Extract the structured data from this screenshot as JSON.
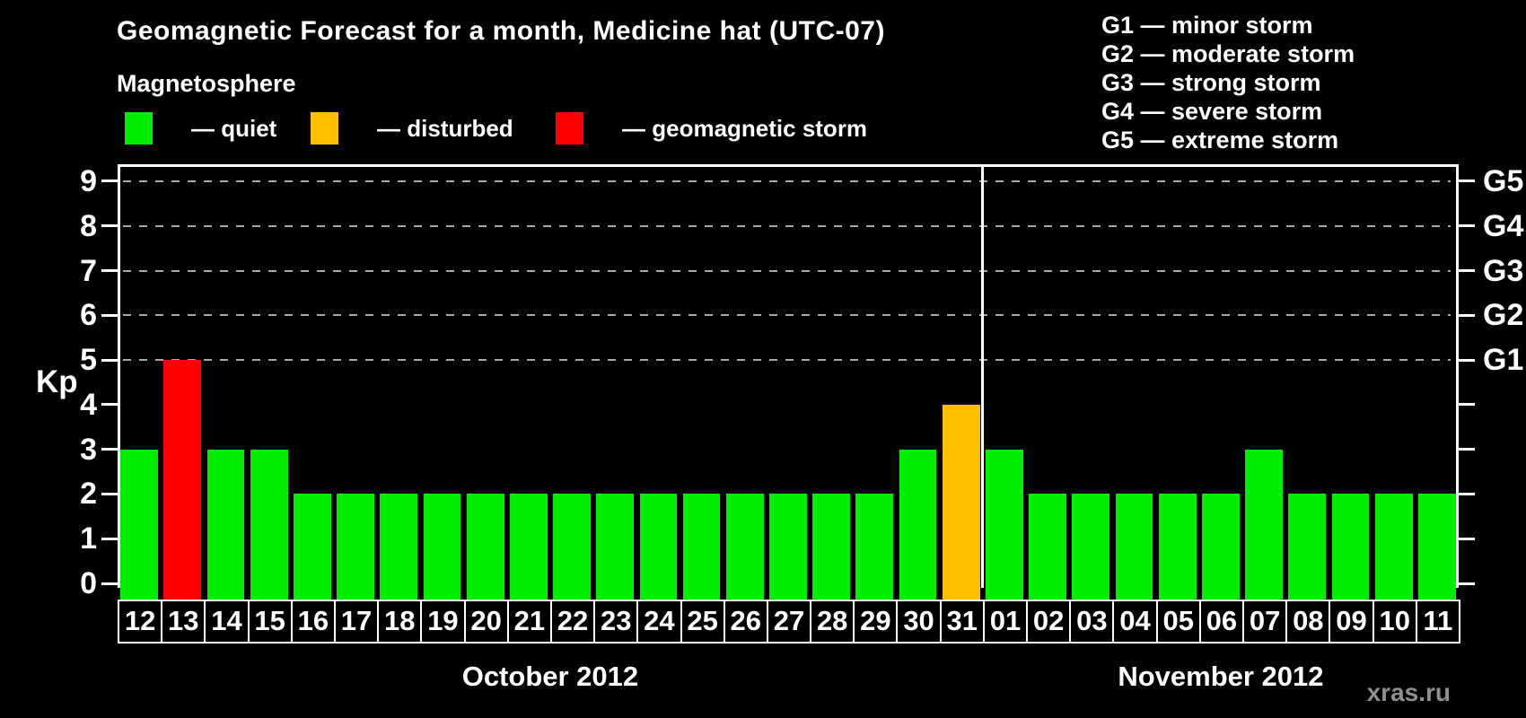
{
  "page": {
    "background": "#000000",
    "watermark": "xras.ru"
  },
  "header": {
    "title": "Geomagnetic Forecast for a month, Medicine hat (UTC-07)",
    "subtitle": "Magnetosphere"
  },
  "legend": {
    "items": [
      {
        "label": "— quiet",
        "status": "quiet",
        "color": "#00ee00"
      },
      {
        "label": "— disturbed",
        "status": "disturbed",
        "color": "#ffbf00"
      },
      {
        "label": "— geomagnetic storm",
        "status": "storm",
        "color": "#ff0000"
      }
    ]
  },
  "g_legend": {
    "items": [
      {
        "label": "G1 — minor storm"
      },
      {
        "label": "G2 — moderate storm"
      },
      {
        "label": "G3 — strong storm"
      },
      {
        "label": "G4 — severe storm"
      },
      {
        "label": "G5 — extreme storm"
      }
    ]
  },
  "chart_data": {
    "type": "bar",
    "title": "Geomagnetic Forecast for a month, Medicine hat (UTC-07)",
    "ylabel": "Kp",
    "ylim": [
      0,
      9.45
    ],
    "yticks": [
      0,
      1,
      2,
      3,
      4,
      5,
      6,
      7,
      8,
      9
    ],
    "gridlines": [
      5,
      6,
      7,
      8,
      9
    ],
    "grid": "dashed horizontal lines at storm levels only",
    "legend_position": "top",
    "right_axis_labels": [
      {
        "value": 5,
        "label": "G1"
      },
      {
        "value": 6,
        "label": "G2"
      },
      {
        "value": 7,
        "label": "G3"
      },
      {
        "value": 8,
        "label": "G4"
      },
      {
        "value": 9,
        "label": "G5"
      }
    ],
    "status_colors": {
      "quiet": "#00ee00",
      "disturbed": "#ffbf00",
      "storm": "#ff0000"
    },
    "months": [
      {
        "label": "October 2012",
        "start": 0,
        "count": 20
      },
      {
        "label": "November 2012",
        "start": 20,
        "count": 11
      }
    ],
    "bars": [
      {
        "day": "12",
        "kp": 3,
        "status": "quiet"
      },
      {
        "day": "13",
        "kp": 5,
        "status": "storm"
      },
      {
        "day": "14",
        "kp": 3,
        "status": "quiet"
      },
      {
        "day": "15",
        "kp": 3,
        "status": "quiet"
      },
      {
        "day": "16",
        "kp": 2,
        "status": "quiet"
      },
      {
        "day": "17",
        "kp": 2,
        "status": "quiet"
      },
      {
        "day": "18",
        "kp": 2,
        "status": "quiet"
      },
      {
        "day": "19",
        "kp": 2,
        "status": "quiet"
      },
      {
        "day": "20",
        "kp": 2,
        "status": "quiet"
      },
      {
        "day": "21",
        "kp": 2,
        "status": "quiet"
      },
      {
        "day": "22",
        "kp": 2,
        "status": "quiet"
      },
      {
        "day": "23",
        "kp": 2,
        "status": "quiet"
      },
      {
        "day": "24",
        "kp": 2,
        "status": "quiet"
      },
      {
        "day": "25",
        "kp": 2,
        "status": "quiet"
      },
      {
        "day": "26",
        "kp": 2,
        "status": "quiet"
      },
      {
        "day": "27",
        "kp": 2,
        "status": "quiet"
      },
      {
        "day": "28",
        "kp": 2,
        "status": "quiet"
      },
      {
        "day": "29",
        "kp": 2,
        "status": "quiet"
      },
      {
        "day": "30",
        "kp": 3,
        "status": "quiet"
      },
      {
        "day": "31",
        "kp": 4,
        "status": "disturbed"
      },
      {
        "day": "01",
        "kp": 3,
        "status": "quiet"
      },
      {
        "day": "02",
        "kp": 2,
        "status": "quiet"
      },
      {
        "day": "03",
        "kp": 2,
        "status": "quiet"
      },
      {
        "day": "04",
        "kp": 2,
        "status": "quiet"
      },
      {
        "day": "05",
        "kp": 2,
        "status": "quiet"
      },
      {
        "day": "06",
        "kp": 2,
        "status": "quiet"
      },
      {
        "day": "07",
        "kp": 3,
        "status": "quiet"
      },
      {
        "day": "08",
        "kp": 2,
        "status": "quiet"
      },
      {
        "day": "09",
        "kp": 2,
        "status": "quiet"
      },
      {
        "day": "10",
        "kp": 2,
        "status": "quiet"
      },
      {
        "day": "11",
        "kp": 2,
        "status": "quiet"
      }
    ]
  }
}
